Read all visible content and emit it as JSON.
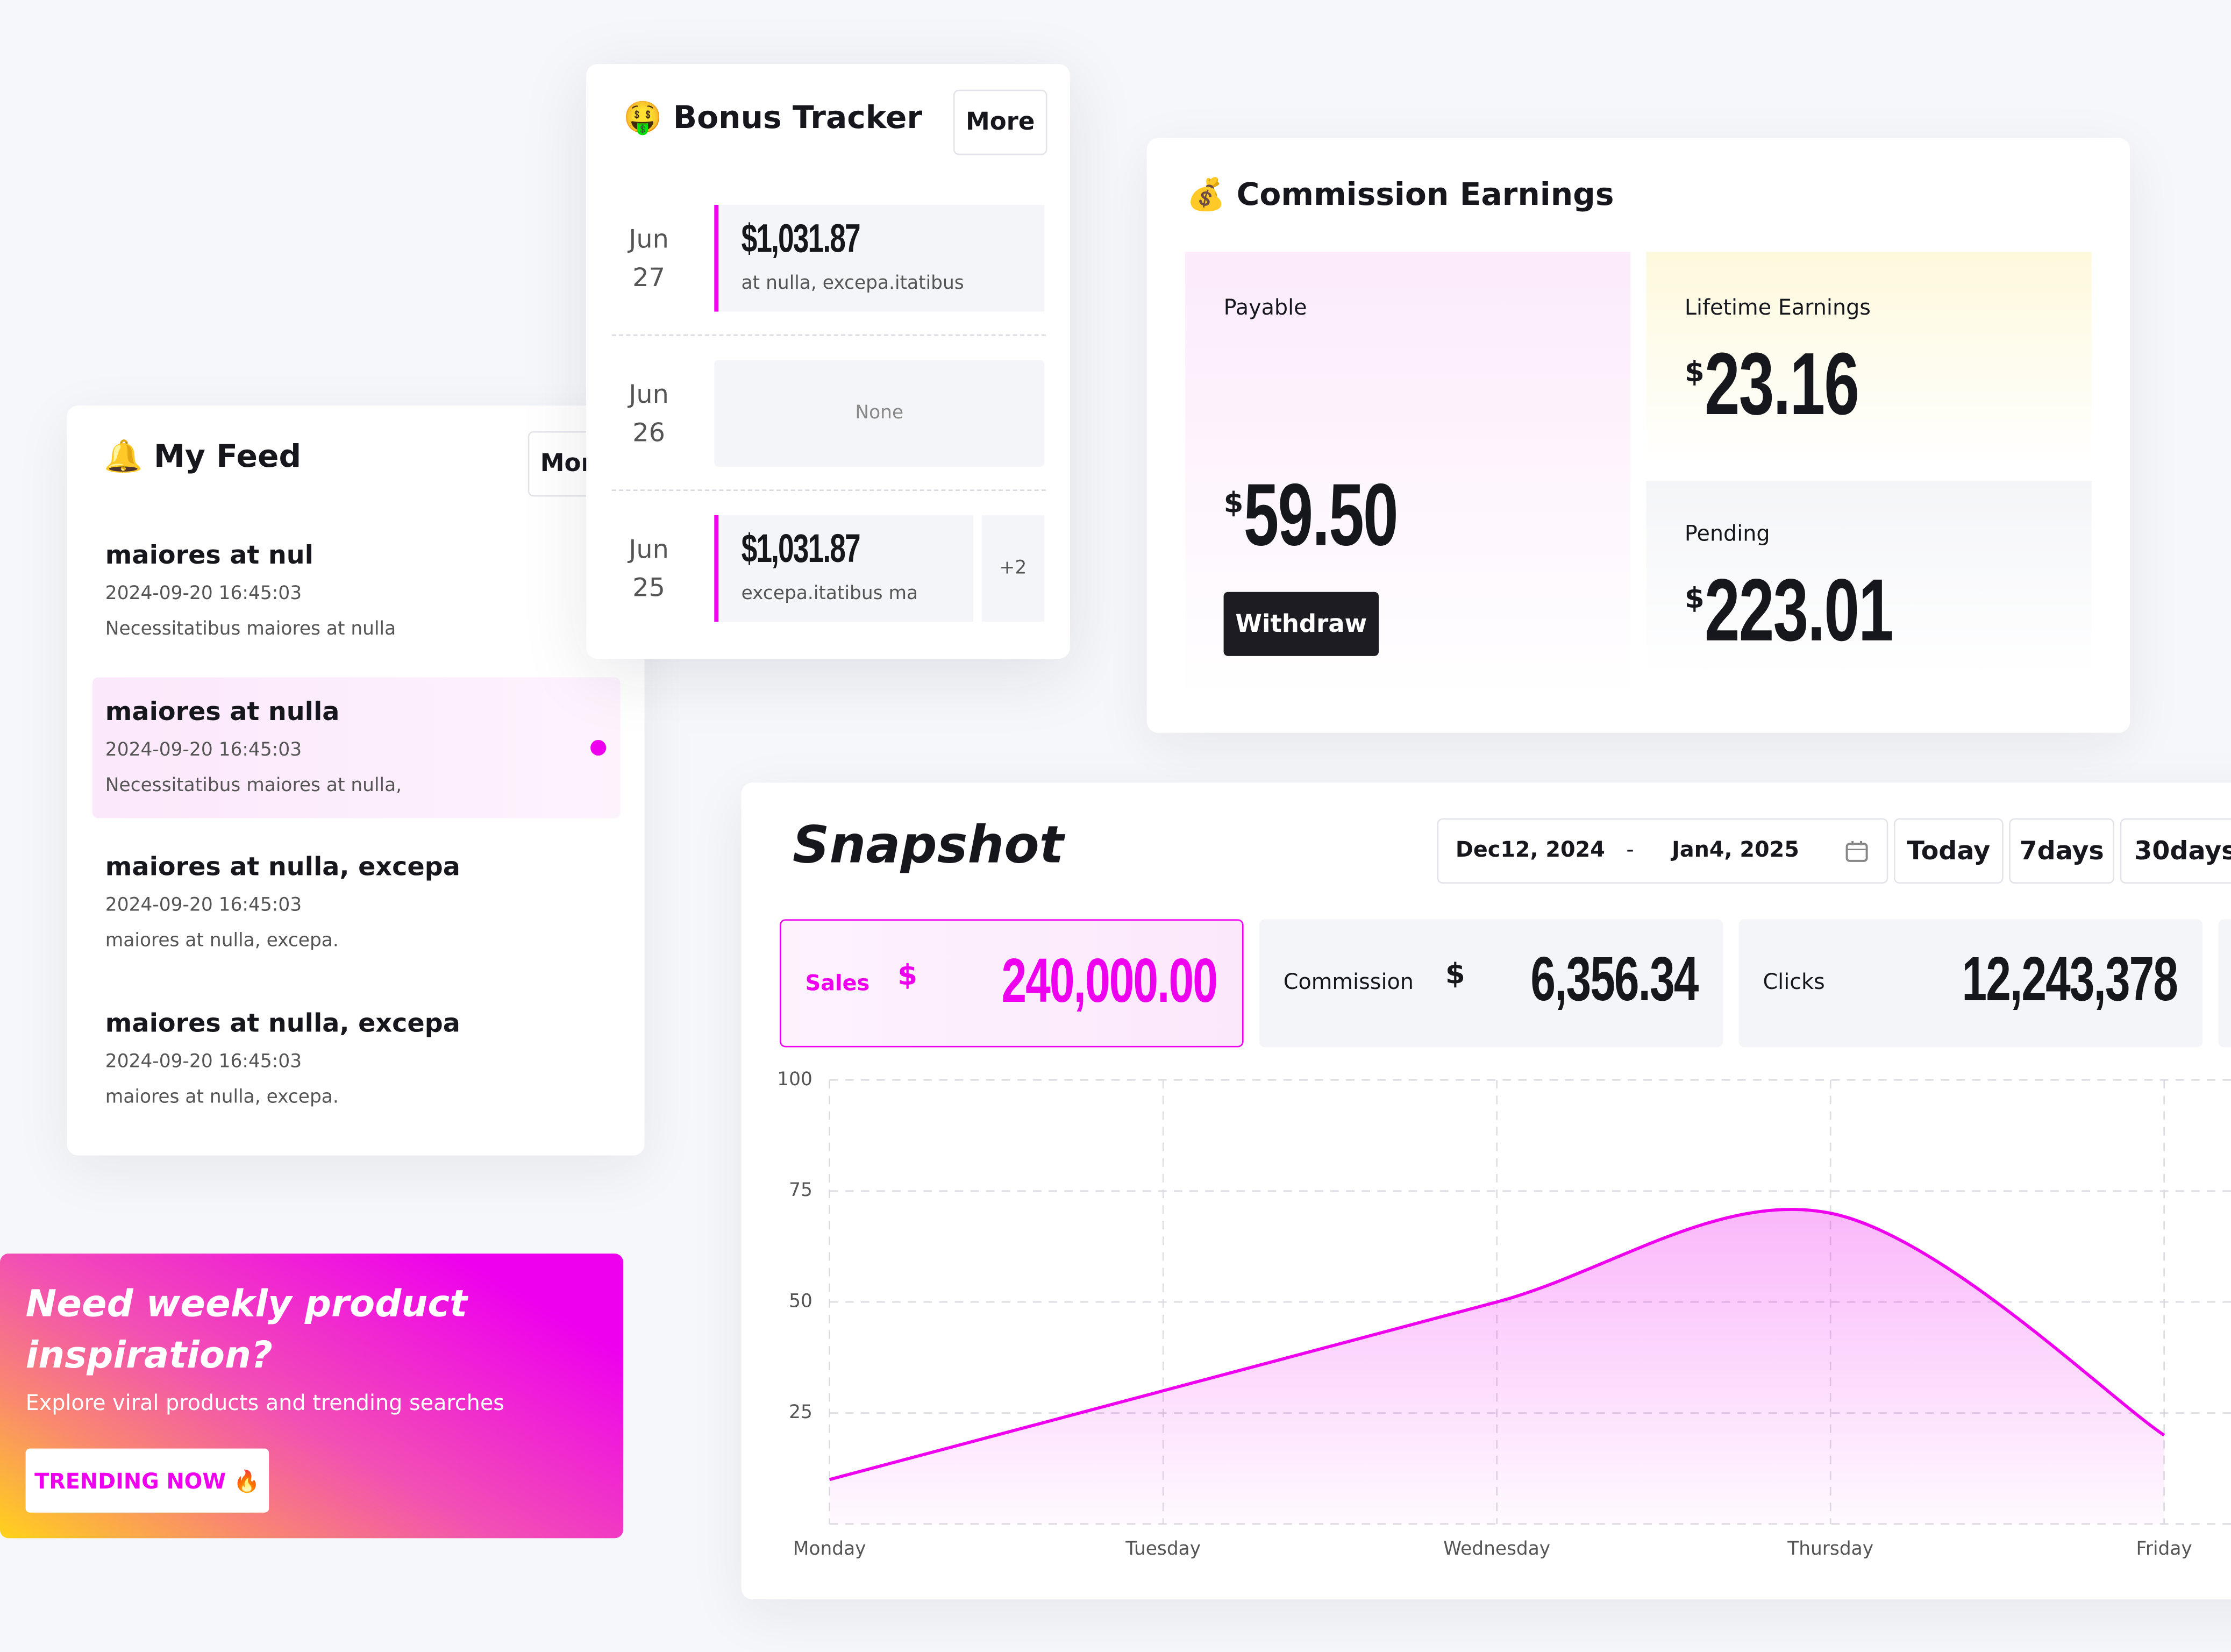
{
  "bonus_tracker": {
    "icon": "🤑",
    "title": "Bonus Tracker",
    "more": "More",
    "entries": [
      {
        "month": "Jun",
        "day": "27",
        "amount": "$1,031.87",
        "note": "at nulla, excepa.itatibus"
      },
      {
        "month": "Jun",
        "day": "26",
        "empty": "None"
      },
      {
        "month": "Jun",
        "day": "25",
        "amount": "$1,031.87",
        "note": "excepa.itatibus ma",
        "extra": "+2"
      }
    ]
  },
  "feed": {
    "icon": "🔔",
    "title": "My Feed",
    "more": "More",
    "items": [
      {
        "title": "maiores at nul",
        "time": "2024-09-20 16:45:03",
        "text": "Necessitatibus maiores at nulla"
      },
      {
        "title": "maiores at nulla",
        "time": "2024-09-20 16:45:03",
        "text": "Necessitatibus maiores at nulla,"
      },
      {
        "title": "maiores at nulla, excepa",
        "time": "2024-09-20 16:45:03",
        "text": "maiores at nulla, excepa."
      },
      {
        "title": "maiores at nulla, excepa",
        "time": "2024-09-20 16:45:03",
        "text": "maiores at nulla, excepa."
      }
    ]
  },
  "promo": {
    "title": "Need weekly product inspiration?",
    "subtitle": "Explore viral products and trending searches",
    "button": "TRENDING NOW",
    "button_icon": "🔥"
  },
  "commission": {
    "icon": "💰",
    "title": "Commission Earnings",
    "payable": {
      "label": "Payable",
      "currency": "$",
      "amount": "59.50"
    },
    "withdraw": "Withdraw",
    "lifetime": {
      "label": "Lifetime Earnings",
      "currency": "$",
      "amount": "23.16"
    },
    "pending": {
      "label": "Pending",
      "currency": "$",
      "amount": "223.01"
    }
  },
  "snapshot": {
    "title": "Snapshot",
    "date_from": "Dec12, 2024",
    "date_sep": "-",
    "date_to": "Jan4, 2025",
    "ranges": [
      "Today",
      "7days",
      "30days"
    ],
    "metrics": [
      {
        "label": "Sales",
        "currency": "$",
        "value": "240,000.00"
      },
      {
        "label": "Commission",
        "currency": "$",
        "value": "6,356.34"
      },
      {
        "label": "Clicks",
        "value": "12,243,378"
      }
    ]
  },
  "chart_data": {
    "type": "area",
    "categories": [
      "Monday",
      "Tuesday",
      "Wednesday",
      "Thursday",
      "Friday"
    ],
    "values": [
      10,
      30,
      50,
      70,
      20
    ],
    "color": "#ee00ee",
    "ylim": [
      0,
      100
    ],
    "yticks": [
      25,
      50,
      75,
      100
    ],
    "grid": true
  }
}
